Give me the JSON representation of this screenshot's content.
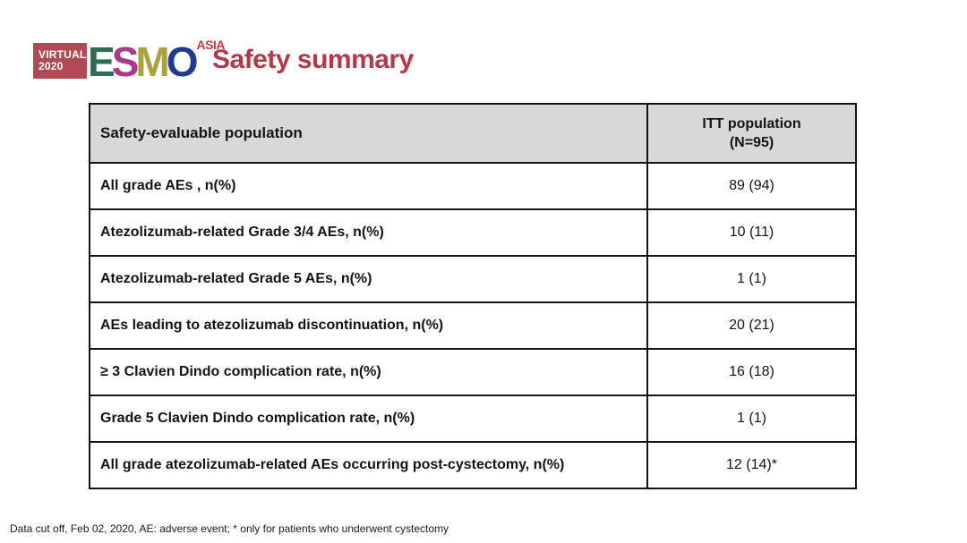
{
  "logo": {
    "virtual_line1": "VIRTUAL",
    "virtual_line2": "2020",
    "letters": [
      {
        "char": "E",
        "color": "#2d6e52"
      },
      {
        "char": "S",
        "color": "#aa3a8c"
      },
      {
        "char": "M",
        "color": "#a8a23f"
      },
      {
        "char": "O",
        "color": "#223a8f"
      }
    ],
    "asia": "ASIA",
    "box_bg_color": "#b04a52",
    "asia_color": "#c23b45"
  },
  "slide": {
    "title": "Safety summary",
    "title_color": "#b1394a"
  },
  "table": {
    "header": {
      "col1": "Safety-evaluable population",
      "col2_line1": "ITT population",
      "col2_line2": "(N=95)",
      "header_bg_color": "#d8d8d8"
    },
    "rows": [
      {
        "label": "All grade AEs , n(%)",
        "value": "89 (94)"
      },
      {
        "label": "Atezolizumab-related Grade 3/4 AEs, n(%)",
        "value": "10 (11)"
      },
      {
        "label": "Atezolizumab-related Grade 5 AEs, n(%)",
        "value": "1 (1)"
      },
      {
        "label": "AEs leading to atezolizumab discontinuation, n(%)",
        "value": "20 (21)"
      },
      {
        "label": "≥ 3 Clavien Dindo complication rate, n(%)",
        "value": "16 (18)"
      },
      {
        "label": "Grade 5 Clavien Dindo complication rate, n(%)",
        "value": "1 (1)"
      },
      {
        "label": "All grade atezolizumab-related AEs occurring post-cystectomy, n(%)",
        "value": "12 (14)*"
      }
    ]
  },
  "footer": {
    "text": "Data cut off, Feb 02, 2020, AE: adverse event; * only for patients who underwent cystectomy"
  }
}
